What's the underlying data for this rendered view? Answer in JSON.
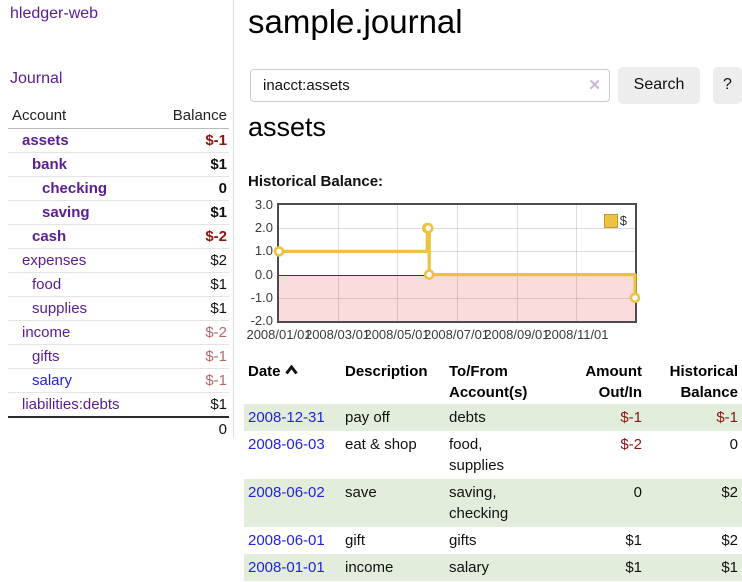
{
  "app": {
    "brand": "hledger-web",
    "nav_journal": "Journal"
  },
  "sidebar": {
    "header": {
      "account": "Account",
      "balance": "Balance"
    },
    "accounts": [
      {
        "name": "assets",
        "depth": 1,
        "balance": "$-1",
        "in_selected_tree": true,
        "balance_style": "neg-strong",
        "link_style": "purple"
      },
      {
        "name": "bank",
        "depth": 2,
        "balance": "$1",
        "in_selected_tree": true,
        "balance_style": "normal",
        "link_style": "purple"
      },
      {
        "name": "checking",
        "depth": 3,
        "balance": "0",
        "in_selected_tree": true,
        "balance_style": "normal",
        "link_style": "purple"
      },
      {
        "name": "saving",
        "depth": 3,
        "balance": "$1",
        "in_selected_tree": true,
        "balance_style": "normal",
        "link_style": "purple"
      },
      {
        "name": "cash",
        "depth": 2,
        "balance": "$-2",
        "in_selected_tree": true,
        "balance_style": "neg-strong",
        "link_style": "purple"
      },
      {
        "name": "expenses",
        "depth": 1,
        "balance": "$2",
        "in_selected_tree": false,
        "balance_style": "normal",
        "link_style": "purple"
      },
      {
        "name": "food",
        "depth": 2,
        "balance": "$1",
        "in_selected_tree": false,
        "balance_style": "normal",
        "link_style": "purple"
      },
      {
        "name": "supplies",
        "depth": 2,
        "balance": "$1",
        "in_selected_tree": false,
        "balance_style": "normal",
        "link_style": "purple"
      },
      {
        "name": "income",
        "depth": 1,
        "balance": "$-2",
        "in_selected_tree": false,
        "balance_style": "neg-muted",
        "link_style": "purple"
      },
      {
        "name": "gifts",
        "depth": 2,
        "balance": "$-1",
        "in_selected_tree": false,
        "balance_style": "neg-muted",
        "link_style": "purple"
      },
      {
        "name": "salary",
        "depth": 2,
        "balance": "$-1",
        "in_selected_tree": false,
        "balance_style": "neg-muted",
        "link_style": "blue"
      },
      {
        "name": "liabilities:debts",
        "depth": 1,
        "balance": "$1",
        "in_selected_tree": false,
        "balance_style": "normal",
        "link_style": "purple"
      }
    ],
    "total": "0"
  },
  "main": {
    "title": "sample.journal"
  },
  "search": {
    "value": "inacct:assets",
    "clear_glyph": "✕",
    "search_label": "Search",
    "help_label": "?"
  },
  "account_page": {
    "title": "assets",
    "section_label": "Historical Balance:"
  },
  "chart_data": {
    "type": "line",
    "title": "Historical Balance:",
    "step": true,
    "series": [
      {
        "name": "$",
        "color": "#EDC240",
        "points": [
          {
            "date": "2008-01-01",
            "value": 1
          },
          {
            "date": "2008-06-01",
            "value": 2
          },
          {
            "date": "2008-06-02",
            "value": 2
          },
          {
            "date": "2008-06-03",
            "value": 0
          },
          {
            "date": "2008-12-31",
            "value": -1
          }
        ]
      }
    ],
    "x_range": [
      "2008-01-01",
      "2008-12-31"
    ],
    "x_ticks": [
      "2008/01/01",
      "2008/03/01",
      "2008/05/01",
      "2008/07/01",
      "2008/09/01",
      "2008/11/01"
    ],
    "y_ticks": [
      "3.0",
      "2.0",
      "1.0",
      "0.0",
      "-1.0",
      "-2.0"
    ],
    "ylim": [
      -2,
      3
    ],
    "grid": true,
    "legend_position": "top-right",
    "negative_region_color": "#fbdcdc",
    "zero_line_color": "#8b1507"
  },
  "register": {
    "headers": [
      {
        "line1": "Date",
        "line2": "",
        "align": "left",
        "sorted": "asc"
      },
      {
        "line1": "Description",
        "line2": "",
        "align": "left"
      },
      {
        "line1": "To/From",
        "line2": "Account(s)",
        "align": "left"
      },
      {
        "line1": "Amount",
        "line2": "Out/In",
        "align": "right"
      },
      {
        "line1": "Historical",
        "line2": "Balance",
        "align": "right"
      }
    ],
    "rows": [
      {
        "date": "2008-12-31",
        "description": "pay off",
        "accounts": "debts",
        "amount": "$-1",
        "balance": "$-1"
      },
      {
        "date": "2008-06-03",
        "description": "eat & shop",
        "accounts": "food, supplies",
        "amount": "$-2",
        "balance": "0"
      },
      {
        "date": "2008-06-02",
        "description": "save",
        "accounts": "saving, checking",
        "amount": "0",
        "balance": "$2"
      },
      {
        "date": "2008-06-01",
        "description": "gift",
        "accounts": "gifts",
        "amount": "$1",
        "balance": "$2"
      },
      {
        "date": "2008-01-01",
        "description": "income",
        "accounts": "salary",
        "amount": "$1",
        "balance": "$1"
      }
    ]
  }
}
